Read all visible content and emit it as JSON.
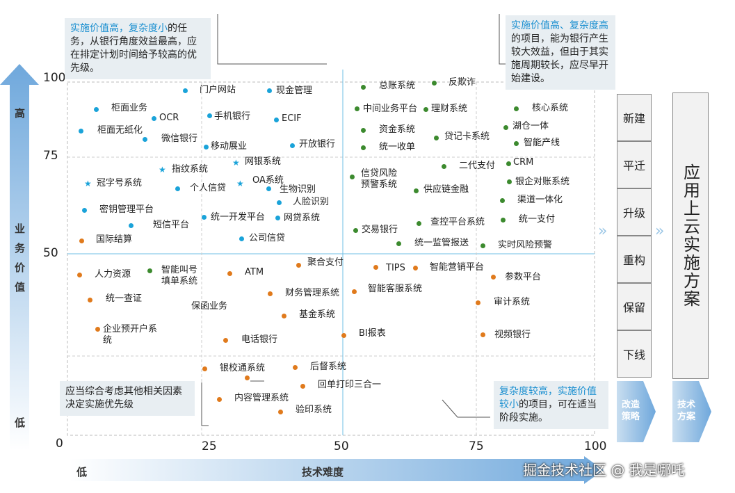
{
  "axes": {
    "y_ticks": [
      "100",
      "75",
      "50",
      "0"
    ],
    "x_ticks": [
      "25",
      "50",
      "75",
      "100"
    ],
    "y_high": "高",
    "y_low": "低",
    "y_label": [
      "业",
      "务",
      "价",
      "值"
    ],
    "x_low": "低",
    "x_label": "技术难度"
  },
  "callouts": {
    "top_left": {
      "highlight": "实施价值高，复杂度小",
      "rest": "的任务，从银行角度效益最高，应在排定计划时间给予较高的优先级。"
    },
    "top_right": {
      "highlight": "实施价值高、复杂度高",
      "rest": "的项目，能为银行产生较大效益，但由于其实施周期较长，应尽早开始建设。"
    },
    "bottom_left": "应当综合考虑其他相关因素决定实施优先级",
    "bottom_right": {
      "highlight": "复杂度较高，实施价值较小",
      "rest": "的项目，可在适当阶段实施。"
    }
  },
  "strategies": [
    "新建",
    "平迁",
    "升级",
    "重构",
    "保留",
    "下线"
  ],
  "strategy_arrow_label": "改造\n策略",
  "tech_arrow_label": "技术\n方案",
  "cloud_plan": "应用上云实施方案",
  "watermark": "掘金技术社区 @ 我是哪吒",
  "items": {
    "i01": "门户网站",
    "i02": "现金管理",
    "i03": "柜面业务",
    "i04": "OCR",
    "i05": "手机银行",
    "i06": "ECIF",
    "i07": "柜面无纸化",
    "i08": "微信银行",
    "i09": "移动展业",
    "i10": "开放银行",
    "i11": "指纹系统",
    "i12": "网银系统",
    "i13": "冠字号系统",
    "i14": "个人信贷",
    "i15": "OA系统",
    "i16": "生物识别",
    "i17": "人脸识别",
    "i18": "密钥管理平台",
    "i19": "统一开发平台",
    "i20": "网贷系统",
    "i21": "短信平台",
    "i22": "国际结算",
    "i23": "公司信贷",
    "g01": "总账系统",
    "g02": "反欺诈",
    "g03": "中间业务平台",
    "g04": "理财系统",
    "g05": "核心系统",
    "g06": "资金系统",
    "g07": "贷记卡系统",
    "g08": "湖仓一体",
    "g09": "统一收单",
    "g10": "智能产线",
    "g11": "二代支付",
    "g12": "CRM",
    "g13": "信贷风险\n预警系统",
    "g14": "银企对账系统",
    "g15": "供应链金融",
    "g16": "渠道一体化",
    "g17": "交易银行",
    "g18": "查控平台系统",
    "g19": "统一支付",
    "g20": "统一监管报送",
    "g21": "实时风险预警",
    "o01": "聚合支付",
    "o02": "TIPS",
    "o03": "智能营销平台",
    "o04": "人力资源",
    "o05": "智能叫号\n填单系统",
    "o06": "ATM",
    "o07": "参数平台",
    "o08": "财务管理系统",
    "o09": "智能客服系统",
    "o10": "统一查证",
    "o11": "保函业务",
    "o12": "审计系统",
    "o13": "基金系统",
    "o14": "企业预开户系\n统",
    "o15": "BI报表",
    "o16": "视频银行",
    "o17": "电话银行",
    "o18": "银校通系统",
    "o19": "后督系统",
    "o20": "回单打印三合一",
    "o21": "内容管理系统",
    "o22": "验印系统"
  },
  "colors": {
    "blue": "#1aa3d9",
    "green": "#3c8a2e",
    "orange": "#e07a1c",
    "highlight": "#1a8fd0"
  }
}
